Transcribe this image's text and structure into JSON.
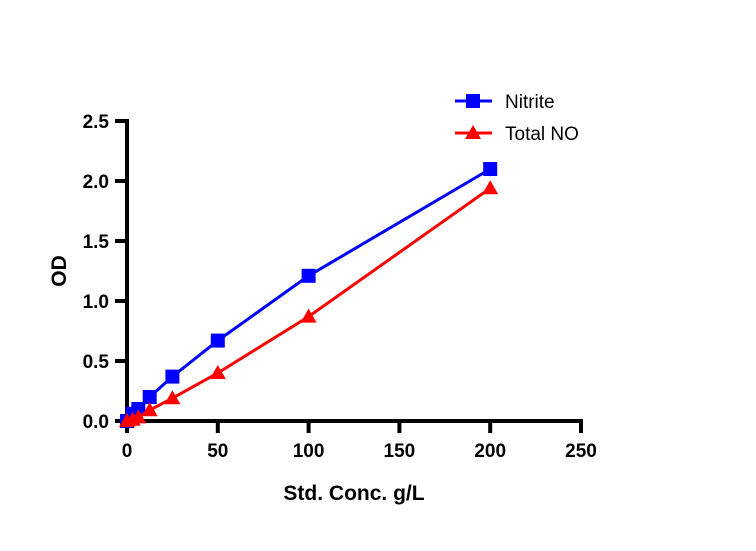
{
  "chart_data": {
    "type": "line",
    "title": "",
    "xlabel": "Std. Conc. g/L",
    "ylabel": "OD",
    "xlim": [
      0,
      250
    ],
    "ylim": [
      0,
      2.5
    ],
    "xticks": [
      "0",
      "50",
      "100",
      "150",
      "200",
      "250"
    ],
    "yticks": [
      "0.0",
      "0.5",
      "1.0",
      "1.5",
      "2.0",
      "2.5"
    ],
    "grid": false,
    "legend_position": "top-right",
    "series": [
      {
        "name": "Nitrite",
        "color": "#0000ff",
        "marker": "square",
        "x": [
          0,
          3.125,
          6.25,
          12.5,
          25,
          50,
          100,
          200
        ],
        "y": [
          0.0,
          0.06,
          0.1,
          0.2,
          0.37,
          0.67,
          1.21,
          2.1
        ]
      },
      {
        "name": "Total NO",
        "color": "#ff0000",
        "marker": "triangle",
        "x": [
          0,
          3.125,
          6.25,
          12.5,
          25,
          50,
          100,
          200
        ],
        "y": [
          0.0,
          0.01,
          0.03,
          0.09,
          0.19,
          0.4,
          0.87,
          1.94
        ]
      }
    ]
  }
}
